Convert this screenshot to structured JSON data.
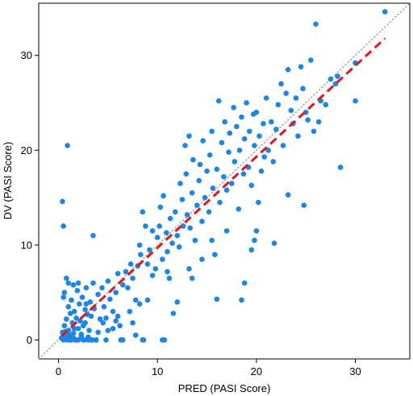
{
  "chart_data": {
    "type": "scatter",
    "xlabel": "PRED (PASI Score)",
    "ylabel": "DV (PASI Score)",
    "xlim": [
      -2,
      35.5
    ],
    "ylim": [
      -2,
      35.5
    ],
    "xticks": [
      0,
      10,
      20,
      30
    ],
    "yticks": [
      0,
      10,
      20,
      30
    ],
    "grid": false,
    "legend": "none",
    "colors": {
      "points": "#1a86e8",
      "trend": "#e8141b",
      "identity": "#9a9a9a"
    },
    "identity_line": {
      "style": "dotted",
      "from": [
        -2,
        -2
      ],
      "to": [
        35.5,
        35.5
      ]
    },
    "trend_line": {
      "style": "dashed",
      "from": [
        0.3,
        0.4
      ],
      "to": [
        33,
        31.8
      ]
    },
    "points": [
      [
        0.3,
        0.2
      ],
      [
        0.4,
        0.8
      ],
      [
        0.5,
        0
      ],
      [
        0.6,
        1.5
      ],
      [
        0.7,
        0.3
      ],
      [
        0.8,
        2.2
      ],
      [
        0.9,
        0
      ],
      [
        1,
        1
      ],
      [
        1,
        3.5
      ],
      [
        1.1,
        0.5
      ],
      [
        1.2,
        2.8
      ],
      [
        1.3,
        0
      ],
      [
        1.3,
        4.2
      ],
      [
        1.4,
        1.8
      ],
      [
        1.5,
        0.7
      ],
      [
        1.6,
        3
      ],
      [
        1.7,
        0
      ],
      [
        1.8,
        2.3
      ],
      [
        1.9,
        5.2
      ],
      [
        2,
        1.2
      ],
      [
        2,
        0
      ],
      [
        2.1,
        3.8
      ],
      [
        2.2,
        2
      ],
      [
        2.3,
        0.4
      ],
      [
        2.4,
        4.5
      ],
      [
        2.5,
        1.5
      ],
      [
        2.6,
        0
      ],
      [
        2.7,
        3.2
      ],
      [
        2.8,
        5.5
      ],
      [
        2.9,
        2.7
      ],
      [
        3,
        0
      ],
      [
        3.1,
        1
      ],
      [
        3.2,
        4
      ],
      [
        3.3,
        2.5
      ],
      [
        3.4,
        0
      ],
      [
        3.5,
        6
      ],
      [
        3.6,
        3.3
      ],
      [
        3.8,
        0
      ],
      [
        4,
        4.8
      ],
      [
        4.2,
        2.2
      ],
      [
        4.4,
        5.5
      ],
      [
        4.6,
        3.5
      ],
      [
        4.8,
        0
      ],
      [
        5,
        6.2
      ],
      [
        5.2,
        4.3
      ],
      [
        5.5,
        3
      ],
      [
        5.8,
        5
      ],
      [
        6,
        7
      ],
      [
        6.3,
        0
      ],
      [
        6.5,
        5.8
      ],
      [
        0.4,
        14.6
      ],
      [
        0.5,
        12
      ],
      [
        0.9,
        20.5
      ],
      [
        0.8,
        6.5
      ],
      [
        1,
        6
      ],
      [
        0.6,
        5
      ],
      [
        1.5,
        5.8
      ],
      [
        2,
        6
      ],
      [
        1.2,
        0
      ],
      [
        0.5,
        4.5
      ],
      [
        3.5,
        11
      ],
      [
        0.7,
        0.9
      ],
      [
        1.8,
        0
      ],
      [
        2.5,
        0
      ],
      [
        3.8,
        0
      ],
      [
        2.8,
        3.8
      ],
      [
        6.8,
        7.2
      ],
      [
        7,
        5.5
      ],
      [
        7.3,
        8
      ],
      [
        7.5,
        6.5
      ],
      [
        7.8,
        4.2
      ],
      [
        8,
        7.8
      ],
      [
        8.2,
        10
      ],
      [
        8.3,
        9
      ],
      [
        8.5,
        13.5
      ],
      [
        8.6,
        0
      ],
      [
        8.8,
        12
      ],
      [
        9,
        8
      ],
      [
        9.2,
        9.5
      ],
      [
        9.5,
        11.5
      ],
      [
        9.8,
        7.5
      ],
      [
        10,
        10.8
      ],
      [
        10.2,
        12
      ],
      [
        10.3,
        14
      ],
      [
        10.5,
        8.5
      ],
      [
        10.6,
        15.2
      ],
      [
        10.7,
        0
      ],
      [
        10.9,
        11.3
      ],
      [
        11,
        9.3
      ],
      [
        11.2,
        6.5
      ],
      [
        11.3,
        12.8
      ],
      [
        11.5,
        10.2
      ],
      [
        11.6,
        2.8
      ],
      [
        11.8,
        13.5
      ],
      [
        12,
        11
      ],
      [
        12.2,
        9.8
      ],
      [
        12.3,
        16.5
      ],
      [
        12.5,
        14.8
      ],
      [
        12.6,
        12
      ],
      [
        12.8,
        20.5
      ],
      [
        12.9,
        17.5
      ],
      [
        13,
        13.2
      ],
      [
        13.2,
        21.5
      ],
      [
        13.3,
        11.8
      ],
      [
        13.5,
        15.5
      ],
      [
        13.6,
        19
      ],
      [
        13.8,
        10.5
      ],
      [
        14,
        14.2
      ],
      [
        14.2,
        16.8
      ],
      [
        14.3,
        18.5
      ],
      [
        14.5,
        12.5
      ],
      [
        14.6,
        21
      ],
      [
        14.8,
        15
      ],
      [
        15,
        17.8
      ],
      [
        15.2,
        13.5
      ],
      [
        15.3,
        19.5
      ],
      [
        15.5,
        22
      ],
      [
        15.6,
        16
      ],
      [
        15.8,
        9
      ],
      [
        16,
        18
      ],
      [
        16.2,
        25.2
      ],
      [
        16.3,
        14.5
      ],
      [
        16.5,
        20.8
      ],
      [
        16.7,
        17.2
      ],
      [
        16.8,
        23
      ],
      [
        17,
        15.8
      ],
      [
        17.2,
        19.8
      ],
      [
        17.3,
        21.8
      ],
      [
        17.5,
        16.5
      ],
      [
        17.7,
        24.5
      ],
      [
        17.8,
        18.8
      ],
      [
        18,
        22.5
      ],
      [
        18.2,
        13.8
      ],
      [
        18.3,
        20
      ],
      [
        18.5,
        23.5
      ],
      [
        18.7,
        17.5
      ],
      [
        18.8,
        21.2
      ],
      [
        19,
        25
      ],
      [
        19.2,
        18.2
      ],
      [
        19.3,
        22
      ],
      [
        19.5,
        16.3
      ],
      [
        19.7,
        23.8
      ],
      [
        19.8,
        20.5
      ],
      [
        20,
        24
      ],
      [
        20.2,
        14.5
      ],
      [
        20.3,
        21.5
      ],
      [
        20.5,
        17.8
      ],
      [
        20.7,
        22.8
      ],
      [
        20.8,
        19.3
      ],
      [
        21,
        25.5
      ],
      [
        21.2,
        20
      ],
      [
        21.5,
        23
      ],
      [
        21.7,
        18.8
      ],
      [
        22,
        22.2
      ],
      [
        22.2,
        24.8
      ],
      [
        22.5,
        27
      ],
      [
        22.7,
        20.5
      ],
      [
        23,
        26
      ],
      [
        23.2,
        28.5
      ],
      [
        23.5,
        24.2
      ],
      [
        23.7,
        22.8
      ],
      [
        24,
        25.5
      ],
      [
        24.2,
        21.5
      ],
      [
        24.5,
        28.8
      ],
      [
        24.7,
        26.5
      ],
      [
        25,
        24
      ],
      [
        25.2,
        23.2
      ],
      [
        25.5,
        29.5
      ],
      [
        25.8,
        22
      ],
      [
        26,
        33.3
      ],
      [
        26.5,
        25.2
      ],
      [
        27,
        24.8
      ],
      [
        27.5,
        27.5
      ],
      [
        28,
        27
      ],
      [
        28.5,
        18.2
      ],
      [
        30,
        29.2
      ],
      [
        30,
        25.2
      ],
      [
        33,
        34.6
      ],
      [
        28.2,
        27.8
      ],
      [
        26.3,
        23
      ],
      [
        10.5,
        0
      ],
      [
        8.5,
        0
      ],
      [
        9,
        4.2
      ],
      [
        13.5,
        6.5
      ],
      [
        11,
        7.2
      ],
      [
        12,
        4
      ],
      [
        16,
        4.3
      ],
      [
        18.5,
        4.2
      ],
      [
        18.8,
        6
      ],
      [
        21.8,
        10.2
      ],
      [
        24.8,
        14.2
      ],
      [
        23.2,
        15.3
      ],
      [
        20,
        11.5
      ],
      [
        19.5,
        9.5
      ],
      [
        19.8,
        10.5
      ],
      [
        17,
        11.5
      ],
      [
        15.5,
        10.5
      ],
      [
        14.5,
        8.5
      ],
      [
        13.2,
        7.5
      ],
      [
        9.5,
        6.8
      ],
      [
        7.5,
        1.8
      ],
      [
        6.5,
        0
      ],
      [
        6,
        2.5
      ],
      [
        5.5,
        1.2
      ],
      [
        6.2,
        1.5
      ],
      [
        5.8,
        2
      ],
      [
        7.2,
        3
      ],
      [
        7.8,
        0.5
      ],
      [
        8.2,
        3.8
      ],
      [
        4.5,
        1.8
      ],
      [
        3.3,
        0
      ],
      [
        2.3,
        0.6
      ],
      [
        1.5,
        0.2
      ],
      [
        4,
        0.8
      ],
      [
        4.8,
        2.3
      ],
      [
        5,
        1
      ],
      [
        3,
        0.3
      ],
      [
        2.7,
        1.8
      ],
      [
        1.6,
        1.2
      ],
      [
        0.9,
        0.6
      ]
    ]
  }
}
